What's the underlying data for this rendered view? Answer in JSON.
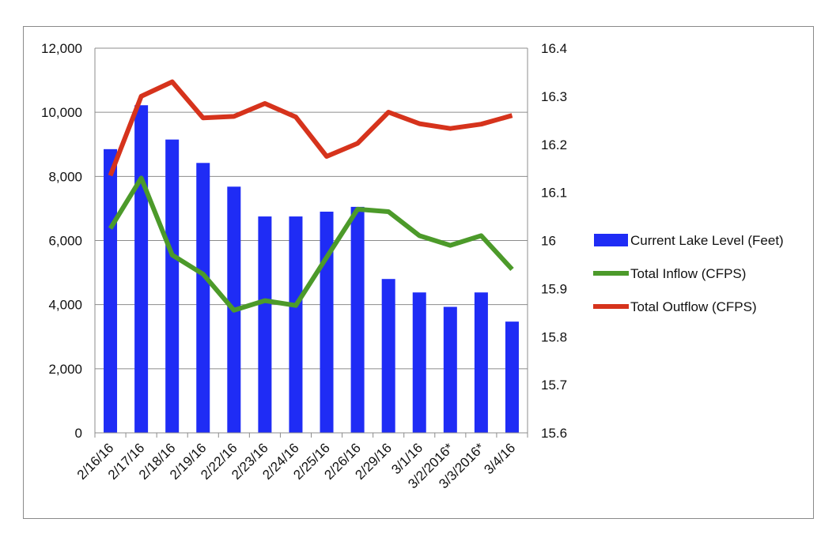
{
  "chart_data": {
    "type": "bar",
    "categories": [
      "2/16/16",
      "2/17/16",
      "2/18/16",
      "2/19/16",
      "2/22/16",
      "2/23/16",
      "2/24/16",
      "2/25/16",
      "2/26/16",
      "2/29/16",
      "3/1/16",
      "3/2/2016*",
      "3/3/2016*",
      "3/4/16"
    ],
    "series": [
      {
        "name": "Current Lake Level (Feet)",
        "type": "bar",
        "axis": "left",
        "color": "#1f2cf5",
        "values": [
          8850,
          10220,
          9150,
          8420,
          7680,
          6750,
          6750,
          6900,
          7050,
          4800,
          4380,
          3930,
          4380,
          3470
        ]
      },
      {
        "name": "Total Inflow (CFPS)",
        "type": "line",
        "axis": "right",
        "color": "#4c9a2a",
        "values": [
          16.025,
          16.13,
          15.97,
          15.93,
          15.855,
          15.875,
          15.865,
          15.965,
          16.065,
          16.06,
          16.01,
          15.99,
          16.01,
          15.94
        ]
      },
      {
        "name": "Total Outflow (CFPS)",
        "type": "line",
        "axis": "right",
        "color": "#d6331c",
        "values": [
          16.135,
          16.3,
          16.33,
          16.255,
          16.258,
          16.285,
          16.257,
          16.175,
          16.202,
          16.267,
          16.243,
          16.233,
          16.242,
          16.26
        ]
      }
    ],
    "y_left": {
      "min": 0,
      "max": 12000,
      "ticks": [
        "0",
        "2,000",
        "4,000",
        "6,000",
        "8,000",
        "10,000",
        "12,000"
      ]
    },
    "y_right": {
      "min": 15.6,
      "max": 16.4,
      "ticks": [
        "15.6",
        "15.7",
        "15.8",
        "15.9",
        "16",
        "16.1",
        "16.2",
        "16.3",
        "16.4"
      ]
    },
    "grid": true,
    "legend_position": "right"
  }
}
